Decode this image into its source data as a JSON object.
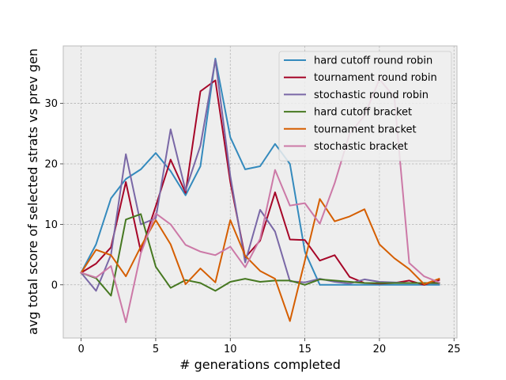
{
  "chart_data": {
    "type": "line",
    "xlabel": "# generations completed",
    "ylabel": "avg total score of selected strats vs prev gen",
    "xlim": [
      -1.2,
      25.2
    ],
    "ylim": [
      -8.8,
      39.5
    ],
    "xticks": [
      0,
      5,
      10,
      15,
      20,
      25
    ],
    "yticks": [
      0,
      10,
      20,
      30
    ],
    "grid": true,
    "legend_position": "upper right",
    "x": [
      0,
      1,
      2,
      3,
      4,
      5,
      6,
      7,
      8,
      9,
      10,
      11,
      12,
      13,
      14,
      15,
      16,
      17,
      18,
      19,
      20,
      21,
      22,
      23,
      24
    ],
    "series": [
      {
        "name": "hard cutoff round robin",
        "color": "#348abd",
        "values": [
          2.0,
          6.7,
          14.3,
          17.5,
          19.1,
          21.8,
          18.8,
          14.8,
          19.6,
          37.4,
          24.4,
          19.1,
          19.6,
          23.3,
          20.0,
          5.5,
          0.0,
          0.0,
          0.0,
          0.0,
          0.0,
          0.0,
          0.0,
          0.0,
          0.0
        ]
      },
      {
        "name": "tournament round robin",
        "color": "#a60628",
        "values": [
          2.0,
          3.5,
          6.2,
          17.0,
          5.5,
          13.0,
          20.7,
          15.2,
          32.0,
          33.8,
          17.0,
          4.5,
          7.3,
          15.3,
          7.5,
          7.4,
          4.0,
          4.9,
          1.3,
          0.3,
          0.2,
          0.3,
          0.7,
          0.0,
          0.8
        ]
      },
      {
        "name": "stochastic round robin",
        "color": "#7a68a6",
        "values": [
          2.0,
          -1.0,
          5.0,
          21.6,
          10.0,
          11.0,
          25.7,
          15.6,
          23.0,
          37.2,
          18.0,
          3.7,
          12.4,
          8.8,
          0.6,
          0.4,
          1.0,
          0.5,
          0.2,
          0.9,
          0.5,
          0.4,
          0.3,
          0.3,
          0.2
        ]
      },
      {
        "name": "hard cutoff bracket",
        "color": "#467821",
        "values": [
          2.0,
          1.1,
          -1.8,
          10.8,
          11.7,
          3.0,
          -0.5,
          0.8,
          0.3,
          -1.0,
          0.5,
          1.0,
          0.5,
          0.7,
          0.7,
          0.0,
          0.9,
          0.7,
          0.5,
          0.3,
          0.3,
          0.3,
          0.3,
          0.3,
          0.3
        ]
      },
      {
        "name": "tournament bracket",
        "color": "#d55e00",
        "values": [
          2.0,
          5.8,
          4.9,
          1.4,
          6.3,
          10.7,
          6.7,
          0.1,
          2.7,
          0.4,
          10.7,
          4.8,
          2.3,
          1.0,
          -6.0,
          4.0,
          14.2,
          10.5,
          11.3,
          12.5,
          6.7,
          4.4,
          2.6,
          0.1,
          1.0
        ]
      },
      {
        "name": "stochastic bracket",
        "color": "#cc79a7",
        "values": [
          2.0,
          1.2,
          3.1,
          -6.2,
          5.2,
          11.8,
          10.0,
          6.6,
          5.5,
          4.9,
          6.3,
          2.9,
          7.6,
          19.0,
          13.1,
          13.5,
          10.1,
          16.8,
          25.0,
          28.0,
          34.0,
          31.0,
          3.6,
          1.4,
          0.4
        ]
      }
    ]
  }
}
